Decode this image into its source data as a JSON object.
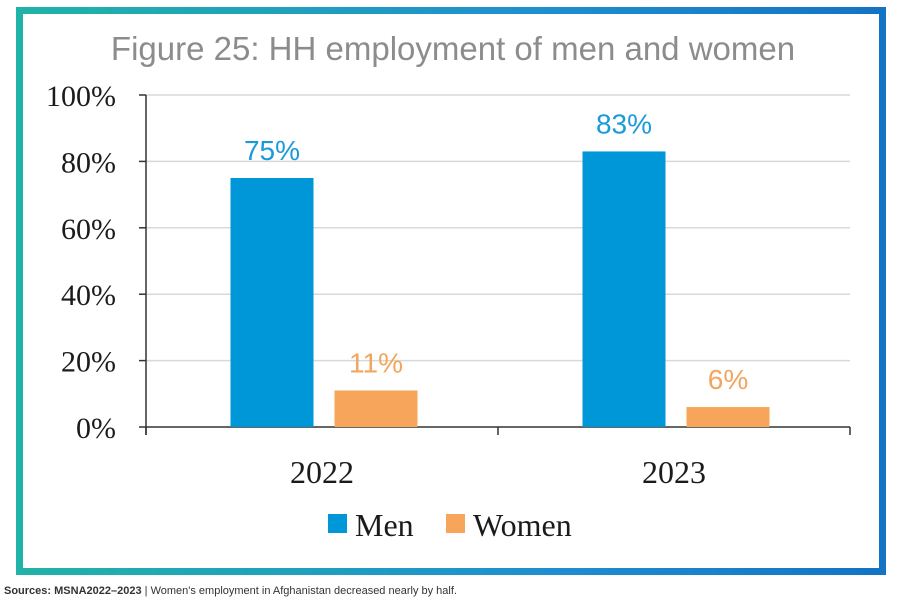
{
  "chart_data": {
    "type": "bar",
    "title": "Figure 25: HH employment of men and women",
    "categories": [
      "2022",
      "2023"
    ],
    "series": [
      {
        "name": "Men",
        "values": [
          75,
          83
        ],
        "labels": [
          "75%",
          "83%"
        ],
        "color": "#0097d9",
        "label_color": "#1a9ad8"
      },
      {
        "name": "Women",
        "values": [
          11,
          6
        ],
        "labels": [
          "11%",
          "6%"
        ],
        "color": "#f6a55a",
        "label_color": "#f3a55e"
      }
    ],
    "y_ticks": [
      "0%",
      "20%",
      "40%",
      "60%",
      "80%",
      "100%"
    ],
    "ylim": [
      0,
      100
    ],
    "grid": true,
    "legend_position": "bottom",
    "xlabel": "",
    "ylabel": ""
  },
  "caption": {
    "source_label": "Sources: MSNA2022–2023",
    "separator": " | ",
    "text": "Women's employment in Afghanistan decreased nearly by half."
  }
}
